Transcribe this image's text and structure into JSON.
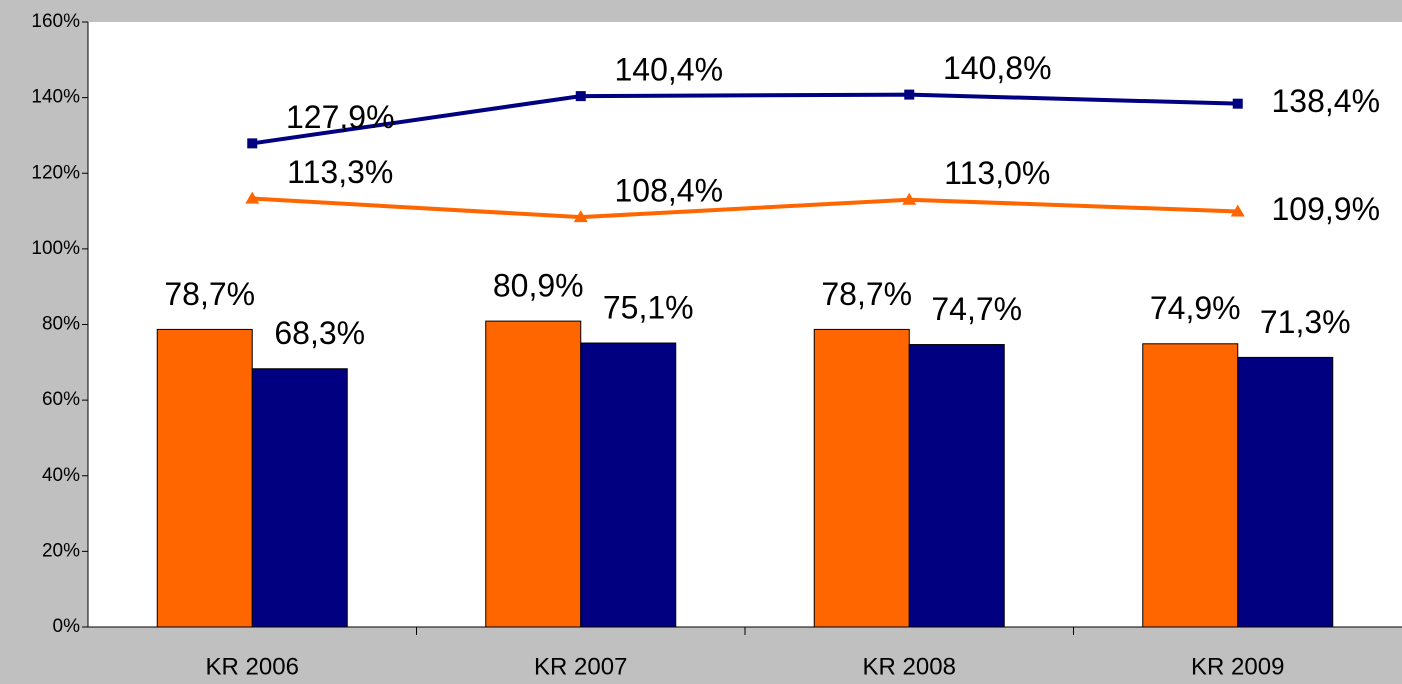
{
  "chart_data": {
    "type": "bar",
    "categories": [
      "KR 2006",
      "KR 2007",
      "KR 2008",
      "KR 2009"
    ],
    "ylim": [
      0,
      160
    ],
    "yticks": [
      {
        "value": 0,
        "label": "0%"
      },
      {
        "value": 20,
        "label": "20%"
      },
      {
        "value": 40,
        "label": "40%"
      },
      {
        "value": 60,
        "label": "60%"
      },
      {
        "value": 80,
        "label": "80%"
      },
      {
        "value": 100,
        "label": "100%"
      },
      {
        "value": 120,
        "label": "120%"
      },
      {
        "value": 140,
        "label": "140%"
      },
      {
        "value": 160,
        "label": "160%"
      }
    ],
    "series": [
      {
        "type": "bar",
        "color": "#ff6600",
        "values": [
          78.7,
          80.9,
          78.7,
          74.9
        ],
        "value_labels": [
          "78,7%",
          "80,9%",
          "78,7%",
          "74,9%"
        ]
      },
      {
        "type": "bar",
        "color": "#000080",
        "values": [
          68.3,
          75.1,
          74.7,
          71.3
        ],
        "value_labels": [
          "68,3%",
          "75,1%",
          "74,7%",
          "71,3%"
        ]
      },
      {
        "type": "line",
        "marker": "square",
        "color": "#000080",
        "values": [
          127.9,
          140.4,
          140.8,
          138.4
        ],
        "value_labels": [
          "127,9%",
          "140,4%",
          "140,8%",
          "138,4%"
        ]
      },
      {
        "type": "line",
        "marker": "triangle",
        "color": "#ff6600",
        "values": [
          113.3,
          108.4,
          113.0,
          109.9
        ],
        "value_labels": [
          "113,3%",
          "108,4%",
          "113,0%",
          "109,9%"
        ]
      }
    ]
  }
}
